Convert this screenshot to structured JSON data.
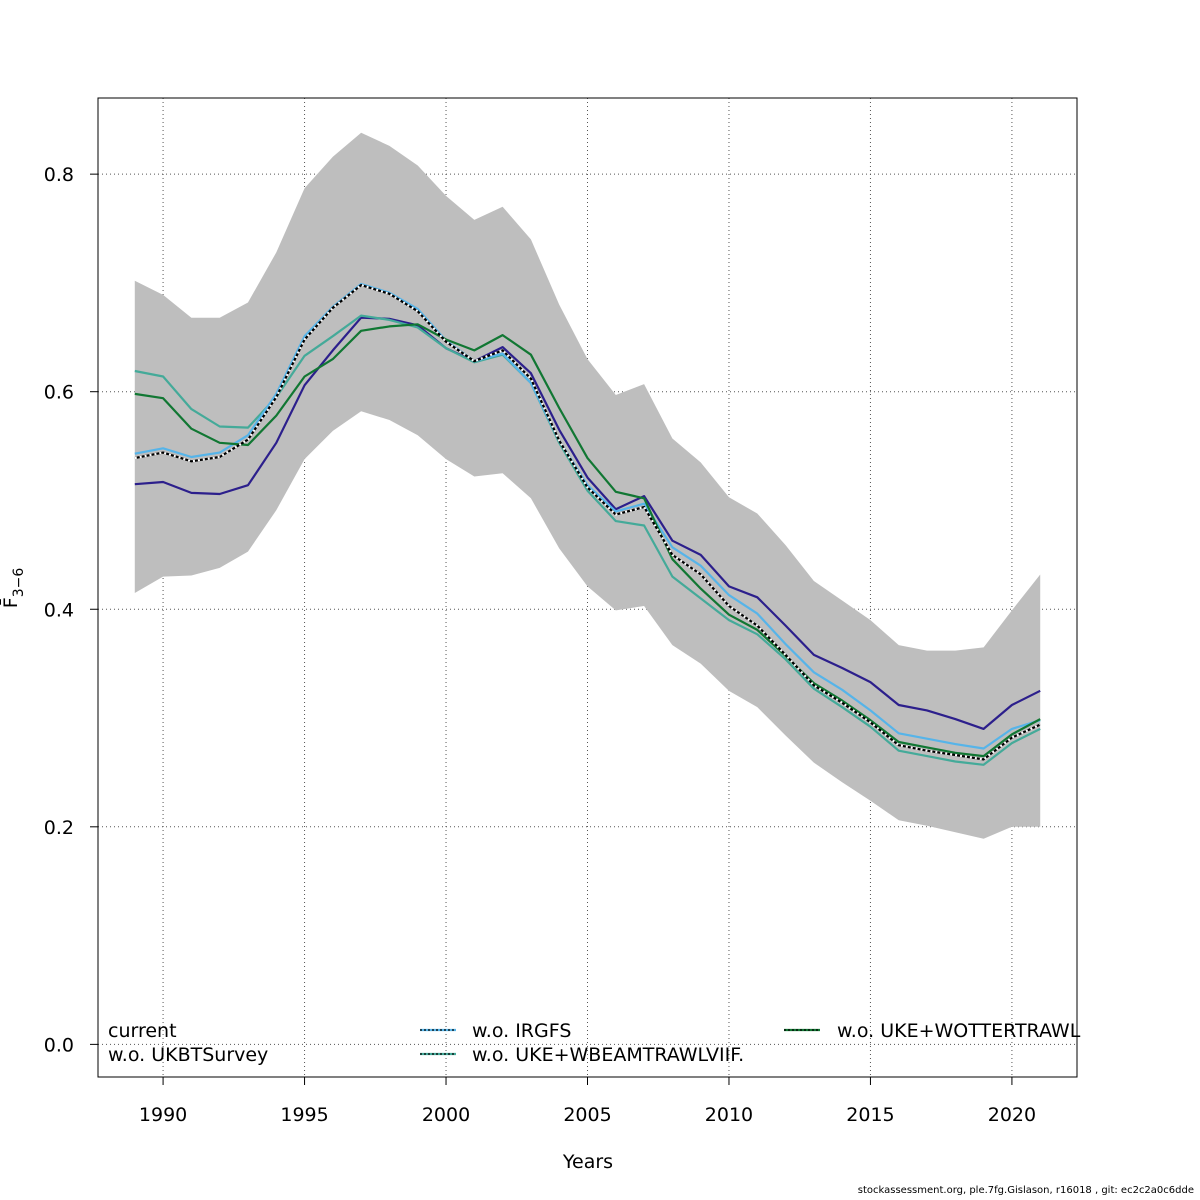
{
  "chart_data": {
    "type": "line",
    "xlabel": "Years",
    "ylabel": "F̄",
    "ylabel_sub": "3−6",
    "xlim": [
      1987.7,
      2022.3
    ],
    "ylim": [
      -0.03,
      0.87
    ],
    "x_ticks": [
      1990,
      1995,
      2000,
      2005,
      2010,
      2015,
      2020
    ],
    "y_ticks": [
      0.0,
      0.2,
      0.4,
      0.6,
      0.8
    ],
    "y_tick_labels": [
      "0.0",
      "0.2",
      "0.4",
      "0.6",
      "0.8"
    ],
    "grid": true,
    "x": [
      1989,
      1990,
      1991,
      1992,
      1993,
      1994,
      1995,
      1996,
      1997,
      1998,
      1999,
      2000,
      2001,
      2002,
      2003,
      2004,
      2005,
      2006,
      2007,
      2008,
      2009,
      2010,
      2011,
      2012,
      2013,
      2014,
      2015,
      2016,
      2017,
      2018,
      2019,
      2020,
      2021
    ],
    "band": {
      "color": "#bebebe",
      "upper": [
        0.702,
        0.689,
        0.668,
        0.668,
        0.682,
        0.728,
        0.787,
        0.816,
        0.838,
        0.826,
        0.808,
        0.78,
        0.758,
        0.77,
        0.74,
        0.68,
        0.63,
        0.597,
        0.607,
        0.557,
        0.535,
        0.503,
        0.488,
        0.459,
        0.426,
        0.408,
        0.39,
        0.367,
        0.362,
        0.362,
        0.365,
        0.399,
        0.432
      ],
      "lower": [
        0.415,
        0.43,
        0.431,
        0.438,
        0.453,
        0.491,
        0.538,
        0.564,
        0.582,
        0.574,
        0.56,
        0.538,
        0.522,
        0.525,
        0.502,
        0.456,
        0.421,
        0.399,
        0.403,
        0.367,
        0.35,
        0.325,
        0.31,
        0.284,
        0.259,
        0.241,
        0.224,
        0.206,
        0.201,
        0.195,
        0.189,
        0.2,
        0.2
      ]
    },
    "series": [
      {
        "name": "current",
        "color": "#000000",
        "style": "solid",
        "values": [
          0.539,
          0.544,
          0.536,
          0.54,
          0.556,
          0.595,
          0.648,
          0.677,
          0.698,
          0.69,
          0.674,
          0.646,
          0.628,
          0.638,
          0.612,
          0.555,
          0.512,
          0.487,
          0.494,
          0.45,
          0.432,
          0.403,
          0.385,
          0.358,
          0.33,
          0.314,
          0.296,
          0.275,
          0.27,
          0.266,
          0.262,
          0.282,
          0.294
        ]
      },
      {
        "name": "w.o. UKBTSurvey",
        "color": "#2c1f8c",
        "style": "solid",
        "values": [
          0.515,
          0.517,
          0.507,
          0.506,
          0.514,
          0.553,
          0.606,
          0.638,
          0.668,
          0.667,
          0.661,
          0.64,
          0.628,
          0.641,
          0.617,
          0.565,
          0.521,
          0.492,
          0.504,
          0.463,
          0.45,
          0.421,
          0.411,
          0.385,
          0.358,
          0.346,
          0.333,
          0.312,
          0.307,
          0.299,
          0.29,
          0.312,
          0.325
        ]
      },
      {
        "name": "w.o. IRGFS",
        "color": "#56b4e9",
        "style": "dotted",
        "values": [
          0.543,
          0.548,
          0.54,
          0.544,
          0.56,
          0.598,
          0.651,
          0.678,
          0.699,
          0.691,
          0.676,
          0.647,
          0.628,
          0.635,
          0.608,
          0.555,
          0.514,
          0.49,
          0.497,
          0.457,
          0.44,
          0.413,
          0.396,
          0.368,
          0.342,
          0.326,
          0.307,
          0.286,
          0.281,
          0.276,
          0.272,
          0.29,
          0.298
        ]
      },
      {
        "name": "w.o. UKE+WBEAMTRAWLVIIF.",
        "color": "#44aa99",
        "style": "dotted",
        "values": [
          0.619,
          0.614,
          0.584,
          0.568,
          0.567,
          0.595,
          0.633,
          0.651,
          0.67,
          0.666,
          0.659,
          0.64,
          0.627,
          0.634,
          0.608,
          0.553,
          0.509,
          0.481,
          0.477,
          0.43,
          0.41,
          0.39,
          0.377,
          0.354,
          0.327,
          0.31,
          0.292,
          0.27,
          0.265,
          0.26,
          0.257,
          0.277,
          0.29
        ]
      },
      {
        "name": "w.o. UKE+WOTTERTRAWL",
        "color": "#117733",
        "style": "dotted",
        "values": [
          0.598,
          0.594,
          0.566,
          0.553,
          0.551,
          0.578,
          0.614,
          0.63,
          0.656,
          0.66,
          0.662,
          0.648,
          0.638,
          0.652,
          0.634,
          0.585,
          0.539,
          0.508,
          0.502,
          0.446,
          0.419,
          0.395,
          0.381,
          0.357,
          0.332,
          0.316,
          0.298,
          0.278,
          0.273,
          0.268,
          0.265,
          0.285,
          0.299
        ]
      }
    ]
  },
  "legend": {
    "col1": [
      "current",
      "w.o. UKBTSurvey"
    ],
    "col2": [
      "w.o. IRGFS",
      "w.o. UKE+WBEAMTRAWLVIIF."
    ],
    "col3": [
      "w.o. UKE+WOTTERTRAWL"
    ]
  },
  "footer": "stockassessment.org, ple.7fg.Gislason, r16018 , git: ec2c2a0c6dde"
}
